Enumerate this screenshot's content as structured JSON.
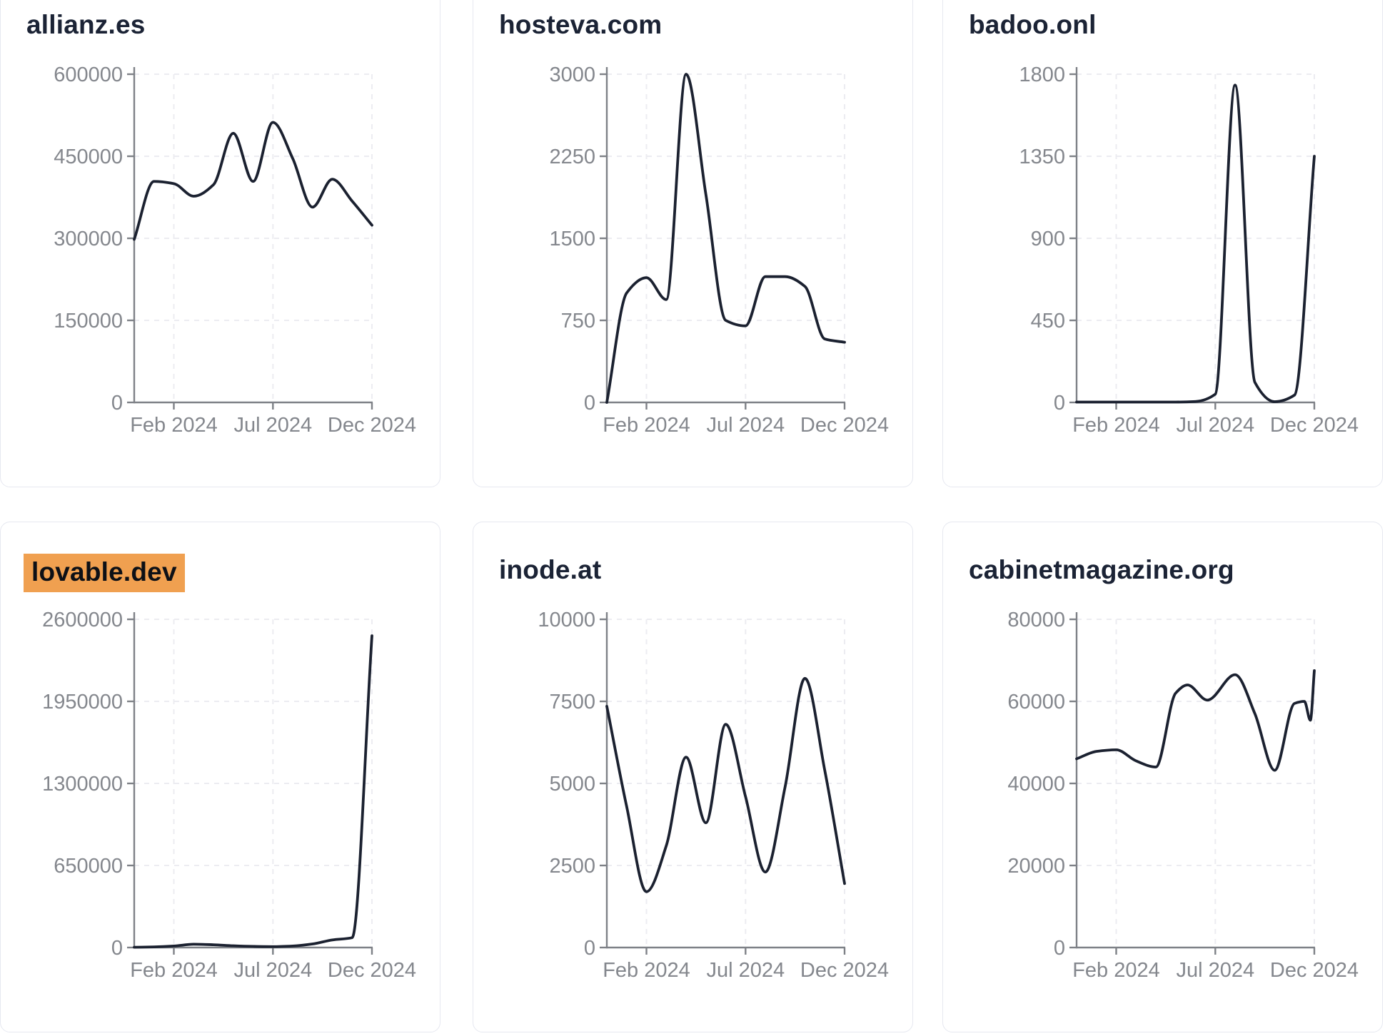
{
  "theme": {
    "page_background": "#ffffff",
    "card_background": "#ffffff",
    "card_border_color": "#e6e8f0",
    "title_color": "#1b2335",
    "line_color": "#1b2130",
    "axis_color": "#7e8187",
    "tick_label_color": "#84878d",
    "grid_color": "#ececf1",
    "highlight_color": "#f0a050",
    "highlight_text_color": "#0d1016"
  },
  "x_axis_note": "x of each point = months since series start (start of line, late 2023); labeled ticks sit at x=2, x=7, x=12",
  "chart_data": [
    {
      "type": "line",
      "title": "allianz.es",
      "title_highlighted": false,
      "grid": "dashed",
      "ylim": [
        0,
        600000
      ],
      "y_ticks": [
        0,
        150000,
        300000,
        450000,
        600000
      ],
      "x_ticks": [
        {
          "label": "Feb 2024",
          "month": 2
        },
        {
          "label": "Jul 2024",
          "month": 7
        },
        {
          "label": "Dec 2024",
          "month": 12
        }
      ],
      "points": [
        [
          0,
          298000
        ],
        [
          1,
          404000
        ],
        [
          2,
          400000
        ],
        [
          3,
          377000
        ],
        [
          4,
          398000
        ],
        [
          5,
          492000
        ],
        [
          6,
          404000
        ],
        [
          7,
          512000
        ],
        [
          8,
          446000
        ],
        [
          9,
          357000
        ],
        [
          10,
          408000
        ],
        [
          11,
          368000
        ],
        [
          12,
          324000
        ]
      ]
    },
    {
      "type": "line",
      "title": "hosteva.com",
      "title_highlighted": false,
      "grid": "dashed",
      "ylim": [
        0,
        3000
      ],
      "y_ticks": [
        0,
        750,
        1500,
        2250,
        3000
      ],
      "x_ticks": [
        {
          "label": "Feb 2024",
          "month": 2
        },
        {
          "label": "Jul 2024",
          "month": 7
        },
        {
          "label": "Dec 2024",
          "month": 12
        }
      ],
      "points": [
        [
          0,
          0
        ],
        [
          1,
          1000
        ],
        [
          2,
          1140
        ],
        [
          3,
          940
        ],
        [
          4,
          3000
        ],
        [
          5,
          1900
        ],
        [
          6,
          750
        ],
        [
          7,
          700
        ],
        [
          8,
          1150
        ],
        [
          9,
          1150
        ],
        [
          10,
          1060
        ],
        [
          11,
          580
        ],
        [
          12,
          550
        ]
      ]
    },
    {
      "type": "line",
      "title": "badoo.onl",
      "title_highlighted": false,
      "grid": "dashed",
      "ylim": [
        0,
        1800
      ],
      "y_ticks": [
        0,
        450,
        900,
        1350,
        1800
      ],
      "x_ticks": [
        {
          "label": "Feb 2024",
          "month": 2
        },
        {
          "label": "Jul 2024",
          "month": 7
        },
        {
          "label": "Dec 2024",
          "month": 12
        }
      ],
      "points": [
        [
          0,
          2
        ],
        [
          1,
          2
        ],
        [
          2,
          2
        ],
        [
          3,
          2
        ],
        [
          4,
          2
        ],
        [
          5,
          2
        ],
        [
          6,
          5
        ],
        [
          7,
          45
        ],
        [
          8,
          1740
        ],
        [
          9,
          110
        ],
        [
          10,
          4
        ],
        [
          11,
          40
        ],
        [
          12,
          1350
        ]
      ]
    },
    {
      "type": "line",
      "title": "lovable.dev",
      "title_highlighted": true,
      "grid": "dashed",
      "ylim": [
        0,
        2600000
      ],
      "y_ticks": [
        0,
        650000,
        1300000,
        1950000,
        2600000
      ],
      "x_ticks": [
        {
          "label": "Feb 2024",
          "month": 2
        },
        {
          "label": "Jul 2024",
          "month": 7
        },
        {
          "label": "Dec 2024",
          "month": 12
        }
      ],
      "points": [
        [
          0,
          2000
        ],
        [
          1,
          5000
        ],
        [
          2,
          12000
        ],
        [
          3,
          26000
        ],
        [
          4,
          22000
        ],
        [
          5,
          14000
        ],
        [
          6,
          9000
        ],
        [
          7,
          7000
        ],
        [
          8,
          12000
        ],
        [
          9,
          28000
        ],
        [
          10,
          60000
        ],
        [
          11,
          78000
        ],
        [
          12,
          2470000
        ]
      ]
    },
    {
      "type": "line",
      "title": "inode.at",
      "title_highlighted": false,
      "grid": "dashed",
      "ylim": [
        0,
        10000
      ],
      "y_ticks": [
        0,
        2500,
        5000,
        7500,
        10000
      ],
      "x_ticks": [
        {
          "label": "Feb 2024",
          "month": 2
        },
        {
          "label": "Jul 2024",
          "month": 7
        },
        {
          "label": "Dec 2024",
          "month": 12
        }
      ],
      "points": [
        [
          0,
          7350
        ],
        [
          1,
          4300
        ],
        [
          2,
          1700
        ],
        [
          3,
          3100
        ],
        [
          4,
          5800
        ],
        [
          5,
          3800
        ],
        [
          6,
          6800
        ],
        [
          7,
          4600
        ],
        [
          8,
          2300
        ],
        [
          9,
          4900
        ],
        [
          10,
          8200
        ],
        [
          11,
          5400
        ],
        [
          12,
          1950
        ]
      ]
    },
    {
      "type": "line",
      "title": "cabinetmagazine.org",
      "title_highlighted": false,
      "grid": "dashed",
      "ylim": [
        0,
        80000
      ],
      "y_ticks": [
        0,
        20000,
        40000,
        60000,
        80000
      ],
      "x_ticks": [
        {
          "label": "Feb 2024",
          "month": 2
        },
        {
          "label": "Jul 2024",
          "month": 7
        },
        {
          "label": "Dec 2024",
          "month": 12
        }
      ],
      "points": [
        [
          0,
          46000
        ],
        [
          1,
          47800
        ],
        [
          2,
          48200
        ],
        [
          3,
          45500
        ],
        [
          4,
          44000
        ],
        [
          5,
          62000
        ],
        [
          5.6,
          64000
        ],
        [
          6.6,
          60300
        ],
        [
          8,
          66500
        ],
        [
          9,
          57000
        ],
        [
          10,
          43200
        ],
        [
          11,
          59500
        ],
        [
          11.5,
          60000
        ],
        [
          11.8,
          55400
        ],
        [
          12,
          67500
        ]
      ]
    }
  ]
}
